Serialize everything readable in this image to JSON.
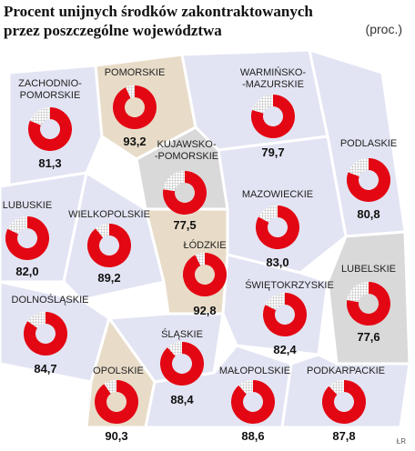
{
  "header": {
    "title": "Procent unijnych środków zakontraktowanych\nprzez poszczególne województwa",
    "unit": "(proc.)"
  },
  "regions": [
    {
      "name": "ZACHODNIO-\nPOMORSKIE",
      "value": 81.3,
      "value_label": "81,3"
    },
    {
      "name": "POMORSKIE",
      "value": 93.2,
      "value_label": "93,2"
    },
    {
      "name": "WARMIŃSKO-\n-MAZURSKIE",
      "value": 79.7,
      "value_label": "79,7"
    },
    {
      "name": "KUJAWSKO-\n-POMORSKIE",
      "value": 77.5,
      "value_label": "77,5"
    },
    {
      "name": "PODLASKIE",
      "value": 80.8,
      "value_label": "80,8"
    },
    {
      "name": "LUBUSKIE",
      "value": 82.0,
      "value_label": "82,0"
    },
    {
      "name": "WIELKOPOLSKIE",
      "value": 89.2,
      "value_label": "89,2"
    },
    {
      "name": "MAZOWIECKIE",
      "value": 83.0,
      "value_label": "83,0"
    },
    {
      "name": "ŁÓDZKIE",
      "value": 92.8,
      "value_label": "92,8"
    },
    {
      "name": "LUBELSKIE",
      "value": 77.6,
      "value_label": "77,6"
    },
    {
      "name": "ŚWIĘTOKRZYSKIE",
      "value": 82.4,
      "value_label": "82,4"
    },
    {
      "name": "DOLNOŚLĄSKIE",
      "value": 84.7,
      "value_label": "84,7"
    },
    {
      "name": "ŚLĄSKIE",
      "value": 88.4,
      "value_label": "88,4"
    },
    {
      "name": "OPOLSKIE",
      "value": 90.3,
      "value_label": "90,3"
    },
    {
      "name": "MAŁOPOLSKIE",
      "value": 88.6,
      "value_label": "88,6"
    },
    {
      "name": "PODKARPACKIE",
      "value": 87.8,
      "value_label": "87,8"
    }
  ],
  "source": "ŁR"
}
